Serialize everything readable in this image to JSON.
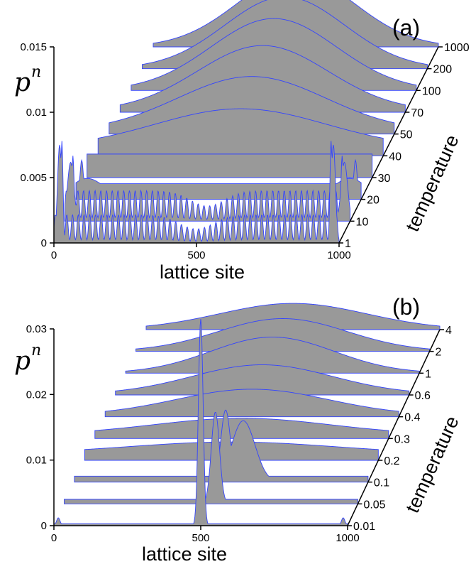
{
  "chart_data": [
    {
      "type": "area",
      "panel_label": "(a)",
      "xlabel": "lattice site",
      "ylabel": "p",
      "ylabel_subscript": "n",
      "zlabel": "temperature",
      "xlim": [
        0,
        1000
      ],
      "ylim": [
        0,
        0.015
      ],
      "x_ticks": [
        0,
        500,
        1000
      ],
      "y_ticks": [
        0,
        0.005,
        0.01,
        0.015
      ],
      "y_tick_labels": [
        "0",
        "0.005",
        "0.01",
        "0.015"
      ],
      "series": [
        {
          "name": "1",
          "shape": "edge-oscillating",
          "peak": 0.0078,
          "edge": 0.0075,
          "center": 0.0012,
          "width": 30
        },
        {
          "name": "10",
          "shape": "edge-oscillating",
          "peak": 0.005,
          "edge": 0.0045,
          "center": 0.0013,
          "width": 45
        },
        {
          "name": "20",
          "shape": "edge",
          "peak": 0.003,
          "edge": 0.0016,
          "center": 0.0012,
          "width": 60
        },
        {
          "name": "30",
          "shape": "edge",
          "peak": 0.0018,
          "edge": 0.0008,
          "center": 0.0018,
          "width": 90
        },
        {
          "name": "40",
          "shape": "gauss",
          "peak": 0.003,
          "center": 500,
          "sigma": 300,
          "floor": 0.0006
        },
        {
          "name": "50",
          "shape": "gauss",
          "peak": 0.0042,
          "center": 500,
          "sigma": 260,
          "floor": 0.0002
        },
        {
          "name": "70",
          "shape": "gauss",
          "peak": 0.005,
          "center": 500,
          "sigma": 230,
          "floor": 0.0001
        },
        {
          "name": "100",
          "shape": "gauss",
          "peak": 0.0055,
          "center": 500,
          "sigma": 220,
          "floor": 0.0
        },
        {
          "name": "200",
          "shape": "gauss",
          "peak": 0.0055,
          "center": 500,
          "sigma": 210,
          "floor": 0.0
        },
        {
          "name": "1000",
          "shape": "gauss",
          "peak": 0.0055,
          "center": 500,
          "sigma": 205,
          "floor": 0.0
        }
      ]
    },
    {
      "type": "area",
      "panel_label": "(b)",
      "xlabel": "lattice site",
      "ylabel": "p",
      "ylabel_subscript": "n",
      "zlabel": "temperature",
      "xlim": [
        0,
        1000
      ],
      "ylim": [
        0,
        0.03
      ],
      "x_ticks": [
        0,
        500,
        1000
      ],
      "y_ticks": [
        0,
        0.01,
        0.02,
        0.03
      ],
      "y_tick_labels": [
        "0",
        "0.01",
        "0.02",
        "0.03"
      ],
      "series": [
        {
          "name": "0.01",
          "shape": "spike",
          "peak": 0.0315,
          "center": 500,
          "sigma": 8,
          "edge": 0.0012,
          "floor": 0.0003
        },
        {
          "name": "0.05",
          "shape": "spike",
          "peak": 0.014,
          "center": 515,
          "sigma": 14,
          "edge": 0.0006,
          "floor": 0.0007
        },
        {
          "name": "0.1",
          "shape": "skewed",
          "peak": 0.011,
          "center": 545,
          "sigma": 40,
          "floor": 0.0009
        },
        {
          "name": "0.2",
          "shape": "gauss",
          "peak": 0.0018,
          "center": 500,
          "sigma": 350,
          "floor": 0.001
        },
        {
          "name": "0.3",
          "shape": "gauss",
          "peak": 0.0025,
          "center": 500,
          "sigma": 300,
          "floor": 0.0006
        },
        {
          "name": "0.4",
          "shape": "gauss",
          "peak": 0.004,
          "center": 500,
          "sigma": 260,
          "floor": 0.0002
        },
        {
          "name": "0.6",
          "shape": "gauss",
          "peak": 0.0045,
          "center": 500,
          "sigma": 240,
          "floor": 0.0001
        },
        {
          "name": "1",
          "shape": "gauss",
          "peak": 0.0055,
          "center": 500,
          "sigma": 210,
          "floor": 0.0
        },
        {
          "name": "2",
          "shape": "gauss",
          "peak": 0.005,
          "center": 500,
          "sigma": 220,
          "floor": 0.0
        },
        {
          "name": "4",
          "shape": "gauss",
          "peak": 0.004,
          "center": 500,
          "sigma": 250,
          "floor": 0.0
        }
      ]
    }
  ]
}
